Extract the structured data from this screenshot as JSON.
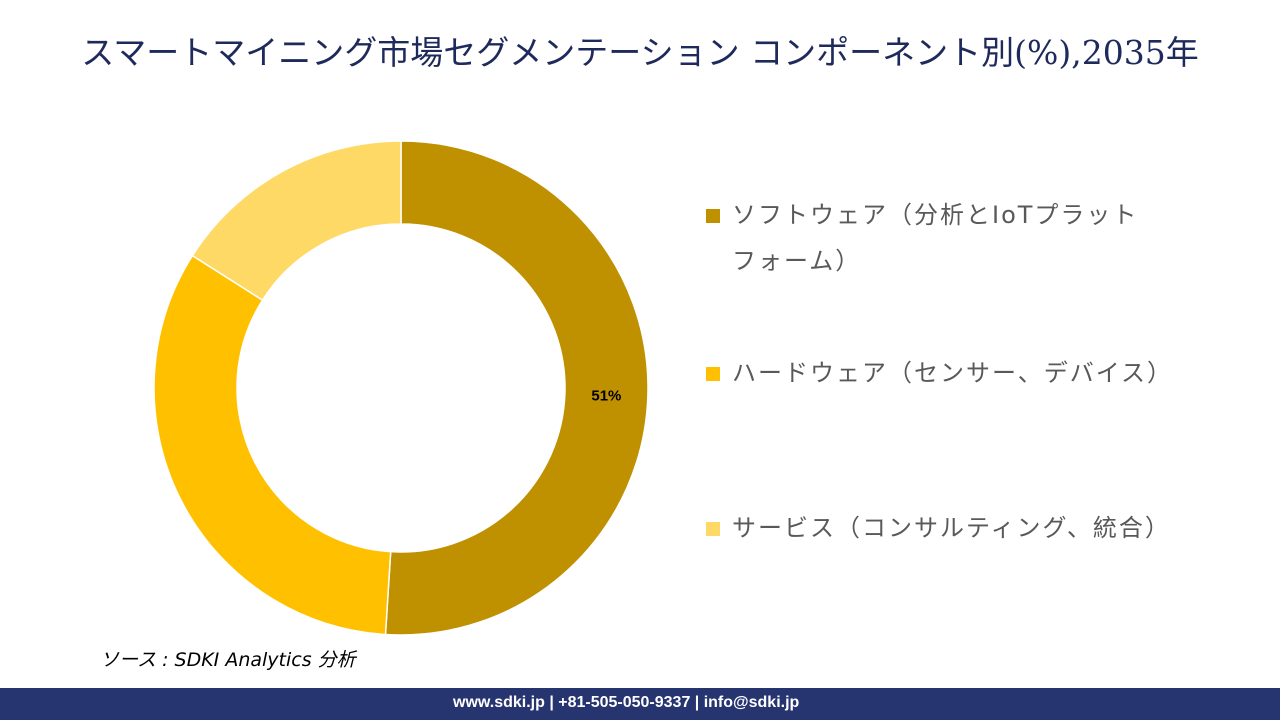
{
  "chart_data": {
    "type": "pie",
    "variant": "donut",
    "title": "スマートマイニング市場セグメンテーション コンポーネント別(%),2035年",
    "categories": [
      "ソフトウェア（分析とIoTプラットフォーム）",
      "ハードウェア（センサー、デバイス）",
      "サービス（コンサルティング、統合）"
    ],
    "values": [
      51,
      33,
      16
    ],
    "data_labels": [
      "51%",
      "",
      ""
    ],
    "colors": [
      "#bf9000",
      "#ffc000",
      "#ffd966"
    ],
    "legend_position": "right"
  },
  "source": "ソース : SDKI Analytics 分析",
  "footer": "www.sdki.jp | +81-505-050-9337 | info@sdki.jp"
}
